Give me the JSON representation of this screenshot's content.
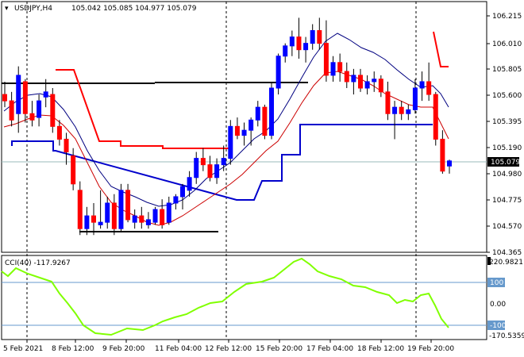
{
  "header": {
    "symbol_tf": "USDJPY,H4",
    "ohlc": "105.042 105.085 104.977 105.079"
  },
  "price_axis": {
    "labels": [
      "106.215",
      "106.010",
      "105.805",
      "105.600",
      "105.395",
      "105.190",
      "104.980",
      "104.775",
      "104.570",
      "104.365"
    ],
    "current_price": "105.079"
  },
  "indicator": {
    "title": "CCI(40) -117.9267",
    "max_label": "220.9821",
    "min_label": "-170.5359",
    "levels": [
      "100",
      "0.00",
      "-100"
    ]
  },
  "time_axis": [
    "5 Feb 2021",
    "8 Feb 12:00",
    "9 Feb 20:00",
    "11 Feb 04:00",
    "12 Feb 12:00",
    "15 Feb 20:00",
    "17 Feb 04:00",
    "18 Feb 12:00",
    "19 Feb 20:00"
  ],
  "colors": {
    "bull": "#0000ff",
    "bear": "#ff0000",
    "ma_fast": "#000080",
    "ma_slow": "#ff0000",
    "cci": "#80ff00",
    "level_line": "#000000",
    "support": "#0000cc"
  },
  "chart_data": {
    "type": "candlestick",
    "ylim": [
      104.365,
      106.215
    ],
    "candles": [
      [
        105.6,
        105.7,
        105.5,
        105.55
      ],
      [
        105.55,
        105.62,
        105.35,
        105.4
      ],
      [
        105.45,
        105.82,
        105.3,
        105.75
      ],
      [
        105.7,
        105.72,
        105.38,
        105.45
      ],
      [
        105.45,
        105.55,
        105.35,
        105.4
      ],
      [
        105.42,
        105.6,
        105.35,
        105.55
      ],
      [
        105.58,
        105.72,
        105.5,
        105.62
      ],
      [
        105.6,
        105.65,
        105.3,
        105.35
      ],
      [
        105.35,
        105.4,
        105.2,
        105.25
      ],
      [
        105.25,
        105.3,
        105.05,
        105.15
      ],
      [
        105.12,
        105.18,
        104.85,
        104.9
      ],
      [
        104.85,
        104.92,
        104.5,
        104.55
      ],
      [
        104.55,
        104.72,
        104.5,
        104.65
      ],
      [
        104.65,
        104.75,
        104.5,
        104.6
      ],
      [
        104.58,
        104.85,
        104.55,
        104.6
      ],
      [
        104.6,
        104.8,
        104.55,
        104.75
      ],
      [
        104.75,
        104.82,
        104.5,
        104.55
      ],
      [
        104.55,
        104.9,
        104.52,
        104.85
      ],
      [
        104.85,
        104.9,
        104.6,
        104.62
      ],
      [
        104.6,
        104.7,
        104.55,
        104.65
      ],
      [
        104.65,
        104.72,
        104.55,
        104.6
      ],
      [
        104.58,
        104.68,
        104.55,
        104.62
      ],
      [
        104.6,
        104.72,
        104.58,
        104.7
      ],
      [
        104.7,
        104.78,
        104.55,
        104.58
      ],
      [
        104.6,
        104.8,
        104.58,
        104.75
      ],
      [
        104.75,
        104.82,
        104.7,
        104.8
      ],
      [
        104.8,
        104.9,
        104.7,
        104.88
      ],
      [
        104.85,
        105.0,
        104.8,
        104.95
      ],
      [
        104.95,
        105.15,
        104.9,
        105.1
      ],
      [
        105.1,
        105.18,
        105.0,
        105.05
      ],
      [
        105.05,
        105.12,
        104.92,
        104.95
      ],
      [
        104.95,
        105.1,
        104.9,
        105.05
      ],
      [
        105.05,
        105.2,
        105.0,
        105.1
      ],
      [
        105.1,
        105.4,
        105.05,
        105.35
      ],
      [
        105.35,
        105.42,
        105.25,
        105.28
      ],
      [
        105.28,
        105.38,
        105.2,
        105.32
      ],
      [
        105.32,
        105.42,
        105.2,
        105.4
      ],
      [
        105.4,
        105.55,
        105.35,
        105.5
      ],
      [
        105.5,
        105.52,
        105.25,
        105.28
      ],
      [
        105.28,
        105.7,
        105.25,
        105.65
      ],
      [
        105.65,
        105.92,
        105.6,
        105.9
      ],
      [
        105.9,
        106.0,
        105.85,
        105.98
      ],
      [
        105.98,
        106.1,
        105.9,
        106.05
      ],
      [
        106.05,
        106.2,
        105.88,
        105.95
      ],
      [
        105.95,
        106.05,
        105.85,
        106.0
      ],
      [
        106.0,
        106.15,
        105.95,
        106.1
      ],
      [
        106.1,
        106.2,
        105.95,
        106.0
      ],
      [
        106.0,
        106.18,
        105.7,
        105.75
      ],
      [
        105.75,
        105.9,
        105.7,
        105.85
      ],
      [
        105.85,
        105.92,
        105.7,
        105.78
      ],
      [
        105.78,
        105.85,
        105.65,
        105.7
      ],
      [
        105.7,
        105.8,
        105.6,
        105.75
      ],
      [
        105.75,
        105.8,
        105.62,
        105.65
      ],
      [
        105.65,
        105.75,
        105.6,
        105.7
      ],
      [
        105.7,
        105.78,
        105.62,
        105.72
      ],
      [
        105.72,
        105.75,
        105.58,
        105.62
      ],
      [
        105.62,
        105.7,
        105.4,
        105.45
      ],
      [
        105.45,
        105.55,
        105.25,
        105.5
      ],
      [
        105.5,
        105.55,
        105.4,
        105.45
      ],
      [
        105.45,
        105.52,
        105.4,
        105.48
      ],
      [
        105.48,
        105.72,
        105.45,
        105.65
      ],
      [
        105.65,
        105.78,
        105.55,
        105.7
      ],
      [
        105.7,
        105.85,
        105.55,
        105.6
      ],
      [
        105.6,
        105.62,
        105.2,
        105.25
      ],
      [
        105.25,
        105.32,
        104.98,
        105.0
      ],
      [
        105.04,
        105.09,
        104.98,
        105.08
      ]
    ]
  }
}
